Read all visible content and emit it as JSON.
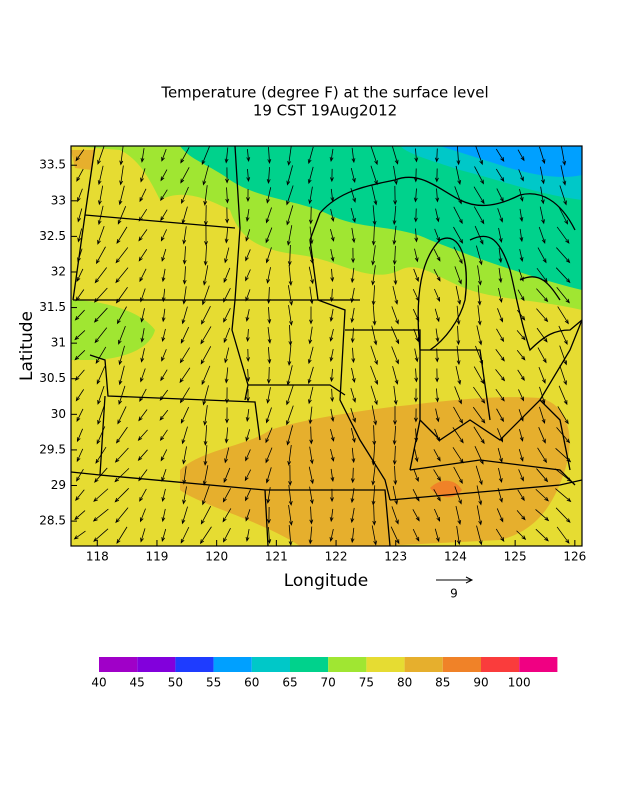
{
  "chart_data": {
    "type": "map",
    "title": [
      "Temperature (degree F) at the surface level",
      "19 CST 19Aug2012"
    ],
    "xlabel": "Longitude",
    "ylabel": "Latitude",
    "xlim": [
      117.56,
      126.12
    ],
    "ylim": [
      28.15,
      33.77
    ],
    "xticks": [
      118,
      119,
      120,
      121,
      122,
      123,
      124,
      125,
      126
    ],
    "yticks": [
      28.5,
      29,
      29.5,
      30,
      30.5,
      31,
      31.5,
      32,
      32.5,
      33,
      33.5
    ],
    "vector_reference": "9",
    "colorbar": {
      "labels": [
        "40",
        "45",
        "50",
        "55",
        "60",
        "65",
        "70",
        "75",
        "80",
        "85",
        "90",
        "100"
      ],
      "colors": [
        "#a000c8",
        "#8200dc",
        "#1e3cff",
        "#00a0ff",
        "#00c8c8",
        "#00d28c",
        "#a0e632",
        "#e6dc32",
        "#e6af2d",
        "#f08228",
        "#fa3c3c",
        "#f00082"
      ]
    }
  }
}
